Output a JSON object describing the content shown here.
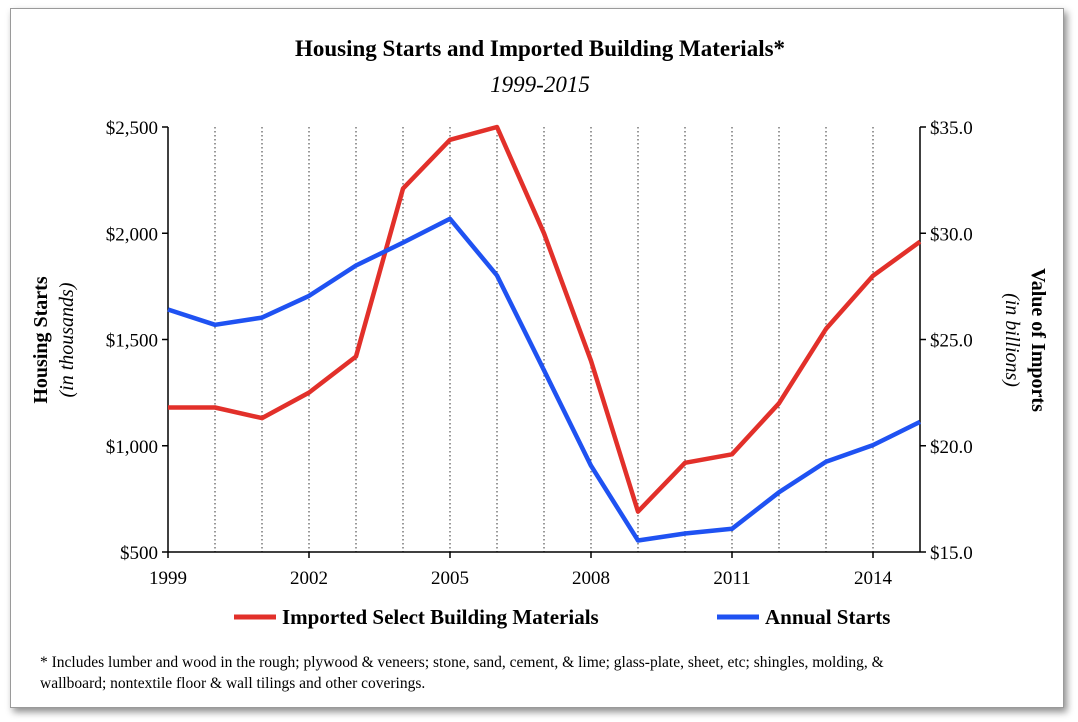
{
  "chart_data": {
    "type": "line",
    "title": "Housing Starts and Imported Building Materials*",
    "subtitle": "1999-2015",
    "y_left": {
      "label": "Housing Starts",
      "sublabel": "(in thousands)",
      "range": [
        500,
        2500
      ],
      "ticks": [
        500,
        1000,
        1500,
        2000,
        2500
      ],
      "tick_labels": [
        "$500",
        "$1,000",
        "$1,500",
        "$2,000",
        "$2,500"
      ]
    },
    "y_right": {
      "label": "Value of Imports",
      "sublabel": "(in billions)",
      "range": [
        15,
        35
      ],
      "ticks": [
        15,
        20,
        25,
        30,
        35
      ],
      "tick_labels": [
        "$15.0",
        "$20.0",
        "$25.0",
        "$30.0",
        "$35.0"
      ]
    },
    "x_range": [
      1999,
      2015
    ],
    "x_ticks": [
      1999,
      2002,
      2005,
      2008,
      2011,
      2014
    ],
    "x_tick_labels": [
      "1999",
      "2002",
      "2005",
      "2008",
      "2011",
      "2014"
    ],
    "grid": "vertical-dotted",
    "legend_position": "bottom",
    "series": [
      {
        "name": "Imported Select Building Materials",
        "axis": "right",
        "color": "#e2302a",
        "x": [
          1999,
          2000,
          2001,
          2002,
          2003,
          2004,
          2005,
          2006,
          2007,
          2008,
          2009,
          2010,
          2011,
          2012,
          2013,
          2014,
          2015
        ],
        "values": [
          21.8,
          21.8,
          21.3,
          22.5,
          24.2,
          32.1,
          34.4,
          35.0,
          30.0,
          24.0,
          16.9,
          19.2,
          19.6,
          22.0,
          25.5,
          28.0,
          29.6
        ]
      },
      {
        "name": "Annual Starts",
        "axis": "left",
        "color": "#1f52f2",
        "x": [
          1999,
          2000,
          2001,
          2002,
          2003,
          2004,
          2005,
          2006,
          2007,
          2008,
          2009,
          2010,
          2011,
          2012,
          2013,
          2014,
          2015
        ],
        "values": [
          1641,
          1569,
          1603,
          1705,
          1848,
          1956,
          2068,
          1801,
          1355,
          906,
          554,
          587,
          609,
          781,
          925,
          1003,
          1112
        ]
      }
    ],
    "footnote": "* Includes lumber and wood in the rough; plywood & veneers; stone, sand, cement, & lime; glass-plate, sheet, etc; shingles, molding, & wallboard; nontextile floor & wall tilings and other coverings."
  }
}
